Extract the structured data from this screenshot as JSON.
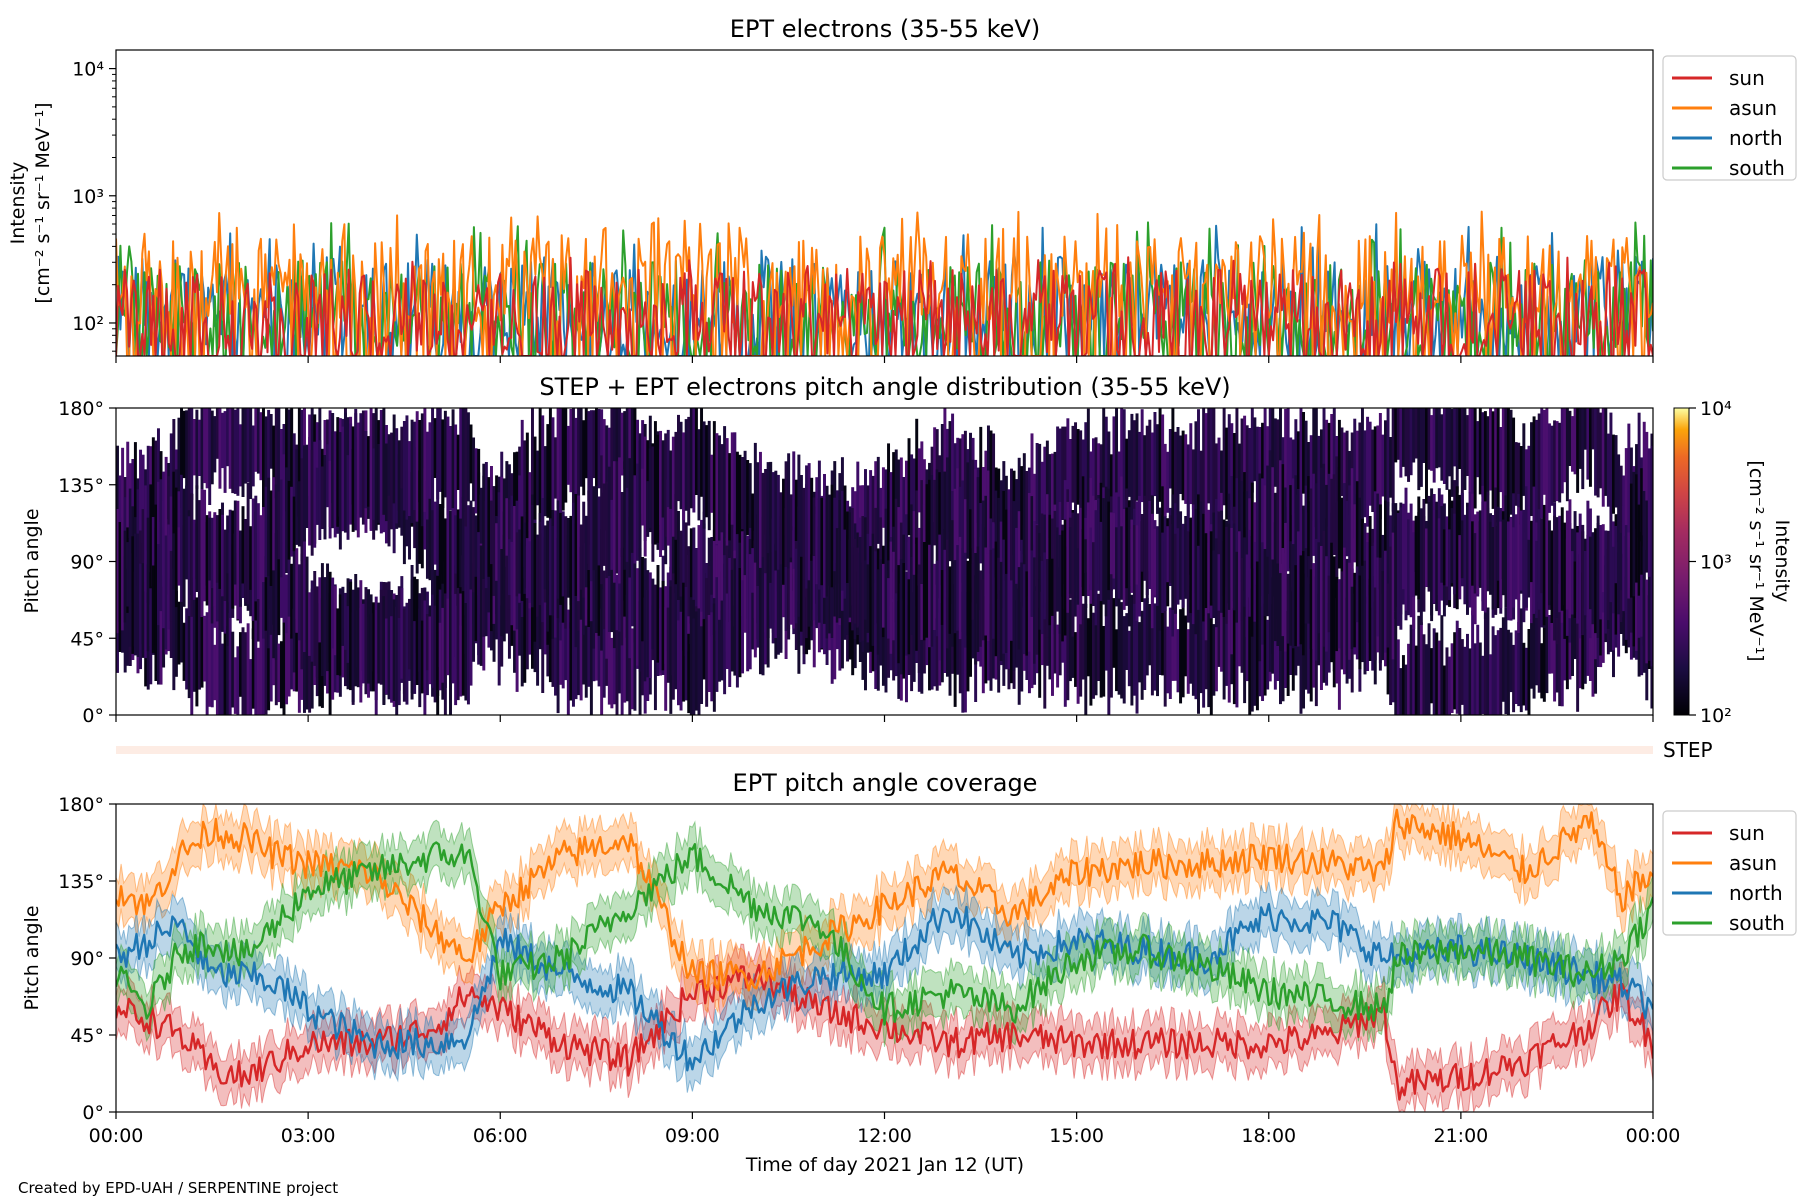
{
  "figure": {
    "credit": "Created by EPD-UAH / SERPENTINE project",
    "xlabel": "Time of day 2021 Jan 12 (UT)",
    "xticks": [
      "00:00",
      "03:00",
      "06:00",
      "09:00",
      "12:00",
      "15:00",
      "18:00",
      "21:00",
      "00:00"
    ],
    "step_label": "STEP"
  },
  "chart_data": [
    {
      "type": "line",
      "title": "EPT electrons (35-55 keV)",
      "ylabel_line1": "Intensity",
      "ylabel_line2": "[cm⁻² s⁻¹ sr⁻¹ MeV⁻¹]",
      "yscale": "log",
      "ylim": [
        55,
        14000
      ],
      "yticks": [
        {
          "value": 100,
          "label": "10²"
        },
        {
          "value": 1000,
          "label": "10³"
        },
        {
          "value": 10000,
          "label": "10⁴"
        }
      ],
      "x_range_hours": [
        0,
        24
      ],
      "legend": {
        "placement": "outside-right"
      },
      "series": [
        {
          "name": "sun",
          "color": "#d62728",
          "typical": 120,
          "peak": 330
        },
        {
          "name": "asun",
          "color": "#ff7f0e",
          "typical": 220,
          "peak": 760
        },
        {
          "name": "north",
          "color": "#1f77b4",
          "typical": 150,
          "peak": 600
        },
        {
          "name": "south",
          "color": "#2ca02c",
          "typical": 140,
          "peak": 640
        }
      ]
    },
    {
      "type": "heatmap",
      "title": "STEP + EPT electrons pitch angle distribution (35-55 keV)",
      "ylabel": "Pitch angle",
      "ylim": [
        0,
        180
      ],
      "yticks": [
        {
          "value": 0,
          "label": "0°"
        },
        {
          "value": 45,
          "label": "45°"
        },
        {
          "value": 90,
          "label": "90°"
        },
        {
          "value": 135,
          "label": "135°"
        },
        {
          "value": 180,
          "label": "180°"
        }
      ],
      "colorbar": {
        "label_line1": "Intensity",
        "label_line2": "[cm⁻² s⁻¹ sr⁻¹ MeV⁻¹]",
        "scale": "log",
        "range": [
          100,
          10000
        ],
        "ticks": [
          {
            "value": 100,
            "label": "10²"
          },
          {
            "value": 1000,
            "label": "10³"
          },
          {
            "value": 10000,
            "label": "10⁴"
          }
        ],
        "colormap": "inferno"
      },
      "typical_intensity": 140
    },
    {
      "type": "line",
      "title": "EPT pitch angle coverage",
      "ylabel": "Pitch angle",
      "ylim": [
        0,
        180
      ],
      "yticks": [
        {
          "value": 0,
          "label": "0°"
        },
        {
          "value": 45,
          "label": "45°"
        },
        {
          "value": 90,
          "label": "90°"
        },
        {
          "value": 135,
          "label": "135°"
        },
        {
          "value": 180,
          "label": "180°"
        }
      ],
      "legend": {
        "placement": "outside-right"
      },
      "series": [
        {
          "name": "sun",
          "color": "#d62728",
          "x": [
            0,
            0.5,
            1,
            1.5,
            2,
            2.5,
            3,
            4,
            5,
            5.5,
            6,
            7,
            8,
            9,
            10,
            11,
            12,
            13,
            14,
            15,
            16,
            17,
            18,
            19,
            19.8,
            20,
            21,
            22,
            23,
            23.5,
            24
          ],
          "y": [
            60,
            55,
            45,
            25,
            20,
            30,
            40,
            40,
            50,
            70,
            60,
            40,
            30,
            70,
            80,
            60,
            50,
            40,
            45,
            40,
            40,
            40,
            40,
            45,
            60,
            15,
            20,
            30,
            50,
            70,
            40
          ]
        },
        {
          "name": "asun",
          "color": "#ff7f0e",
          "x": [
            0,
            0.5,
            1,
            1.5,
            2,
            2.5,
            3,
            4,
            5,
            5.5,
            6,
            7,
            8,
            9,
            10,
            11,
            12,
            13,
            14,
            15,
            16,
            17,
            18,
            19,
            19.8,
            20,
            21,
            22,
            23,
            23.5,
            24
          ],
          "y": [
            130,
            120,
            150,
            165,
            160,
            150,
            145,
            140,
            105,
            90,
            120,
            150,
            160,
            80,
            80,
            100,
            120,
            140,
            115,
            140,
            145,
            145,
            150,
            145,
            140,
            170,
            160,
            140,
            170,
            125,
            140
          ]
        },
        {
          "name": "north",
          "color": "#1f77b4",
          "x": [
            0,
            0.5,
            1,
            1.5,
            2,
            2.5,
            3,
            4,
            5,
            5.5,
            6,
            7,
            8,
            9,
            10,
            11,
            12,
            13,
            14,
            15,
            16,
            17,
            18,
            19,
            19.8,
            20,
            21,
            22,
            23,
            23.5,
            24
          ],
          "y": [
            90,
            100,
            110,
            80,
            80,
            75,
            60,
            40,
            40,
            45,
            100,
            80,
            70,
            30,
            65,
            80,
            80,
            120,
            90,
            100,
            95,
            90,
            115,
            110,
            90,
            90,
            95,
            90,
            80,
            75,
            60
          ]
        },
        {
          "name": "south",
          "color": "#2ca02c",
          "x": [
            0,
            0.5,
            1,
            1.5,
            2,
            2.5,
            3,
            4,
            5,
            5.5,
            6,
            7,
            8,
            9,
            10,
            11,
            12,
            13,
            14,
            15,
            16,
            17,
            18,
            19,
            19.8,
            20,
            21,
            22,
            23,
            23.5,
            24
          ],
          "y": [
            80,
            60,
            95,
            100,
            90,
            110,
            130,
            140,
            150,
            150,
            80,
            90,
            120,
            150,
            120,
            110,
            60,
            70,
            60,
            90,
            95,
            85,
            70,
            65,
            60,
            90,
            95,
            90,
            80,
            90,
            120
          ]
        }
      ]
    }
  ]
}
